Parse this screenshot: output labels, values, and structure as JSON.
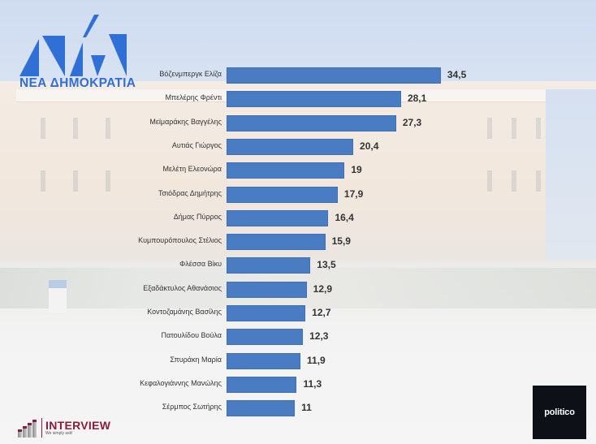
{
  "logos": {
    "party": "ΝΕΑ ΔΗΜΟΚΡΑΤΙΑ",
    "pollster_name": "INTERVIEW",
    "pollster_tagline": "We simply ask!",
    "publisher": "politico"
  },
  "colors": {
    "bar": "#4a7cc4",
    "party_blue": "#2f6fd6",
    "pollster_maroon": "#8a1c3c"
  },
  "chart_data": {
    "type": "bar",
    "orientation": "horizontal",
    "title": "",
    "xlabel": "",
    "ylabel": "",
    "grid": false,
    "legend": null,
    "xlim": [
      0,
      36
    ],
    "categories": [
      "Βόζενμπεργκ Ελίζα",
      "Μπελέρης Φρέντι",
      "Μεϊμαράκης Βαγγέλης",
      "Αυτιάς Γιώργος",
      "Μελέτη Ελεονώρα",
      "Τσιόδρας Δημήτρης",
      "Δήμας Πύρρος",
      "Κυμπουρόπουλος Στέλιος",
      "Φλέσσα Βίκυ",
      "Εξαδάκτυλος Αθανάσιος",
      "Κοντοζαμάνης Βασίλης",
      "Πατουλίδου Βούλα",
      "Σπυράκη Μαρία",
      "Κεφαλογιάννης Μανώλης",
      "Σέρμπος Σωτήρης"
    ],
    "values": [
      34.5,
      28.1,
      27.3,
      20.4,
      19,
      17.9,
      16.4,
      15.9,
      13.5,
      12.9,
      12.7,
      12.3,
      11.9,
      11.3,
      11
    ],
    "value_labels": [
      "34,5",
      "28,1",
      "27,3",
      "20,4",
      "19",
      "17,9",
      "16,4",
      "15,9",
      "13,5",
      "12,9",
      "12,7",
      "12,3",
      "11,9",
      "11,3",
      "11"
    ]
  }
}
